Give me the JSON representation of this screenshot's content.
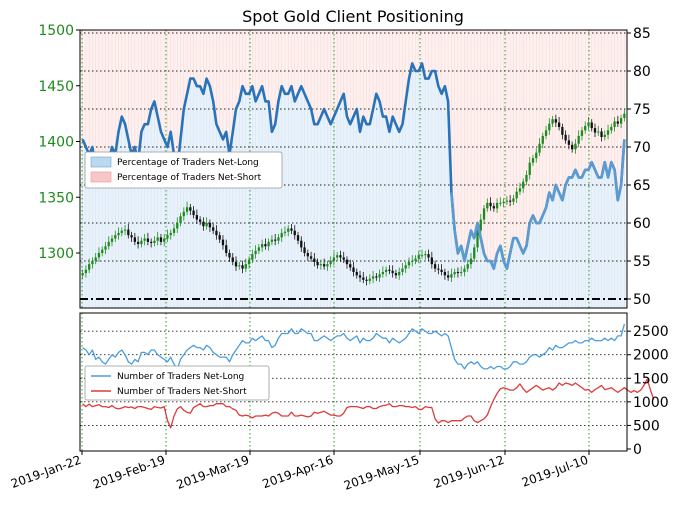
{
  "chart_data": [
    {
      "type": "area",
      "title": "Spot Gold Client Positioning",
      "xlabel": "",
      "ylabel": "",
      "legend_position": "upper-left",
      "grid": true,
      "y_left_ticks": [
        "1500",
        "1450",
        "1400",
        "1350",
        "1300"
      ],
      "y_left_range": [
        1258,
        1500
      ],
      "y_right_ticks": [
        "85",
        "80",
        "75",
        "70",
        "65",
        "60",
        "55",
        "50"
      ],
      "y_right_range": [
        48,
        85
      ],
      "x_ticks": [
        "2019-Jan-22",
        "2019-Feb-19",
        "2019-Mar-19",
        "2019-Apr-16",
        "2019-May-15",
        "2019-Jun-12",
        "2019-Jul-10"
      ],
      "reference_line": 50,
      "legend": [
        "Percentage of Traders Net-Long",
        "Percentage of Traders Net-Short"
      ],
      "series": [
        {
          "name": "Percentage of Traders Net-Long",
          "color": "#2a73b8",
          "values": [
            71,
            70,
            69,
            70,
            67,
            68,
            66,
            65,
            68,
            70,
            69,
            72,
            74,
            73,
            71,
            69,
            70,
            68,
            72,
            73,
            73,
            75,
            76,
            74,
            72,
            71,
            70,
            72,
            69,
            67,
            71,
            75,
            77,
            79,
            79,
            78,
            78,
            77,
            79,
            78,
            76,
            73,
            72,
            71,
            72,
            69,
            72,
            75,
            76,
            78,
            77,
            77,
            78,
            76,
            77,
            78,
            76,
            76,
            72,
            73,
            76,
            78,
            77,
            77,
            78,
            76,
            77,
            78,
            77,
            76,
            75,
            73,
            73,
            74,
            75,
            74,
            73,
            74,
            75,
            76,
            77,
            74,
            73,
            74,
            75,
            72,
            74,
            73,
            73,
            75,
            77,
            76,
            74,
            74,
            72,
            74,
            73,
            72,
            73,
            76,
            79,
            81,
            80,
            80,
            81,
            79,
            79,
            80,
            80,
            78,
            77,
            78,
            76,
            64,
            59,
            56,
            57,
            55,
            57,
            59,
            58,
            60,
            58,
            56,
            55,
            55,
            54,
            56,
            57,
            55,
            54,
            56,
            58,
            58,
            57,
            56,
            57,
            60,
            61,
            60,
            60,
            61,
            62,
            64,
            63,
            65,
            64,
            63,
            65,
            66,
            66,
            67,
            66,
            66,
            67,
            67,
            68,
            67,
            66,
            66,
            68,
            66,
            68,
            67,
            63,
            65,
            71
          ],
          "fill_fraction_of_net_short_region": "remainder to 100"
        },
        {
          "name": "Percentage of Traders Net-Short",
          "color": "#f4a5a5",
          "values": "100 minus Net-Long"
        }
      ],
      "price_candles": {
        "up_color": "#1e8a1e",
        "down_color": "#111111",
        "close": [
          1282,
          1285,
          1290,
          1293,
          1296,
          1300,
          1303,
          1306,
          1310,
          1313,
          1316,
          1318,
          1320,
          1321,
          1316,
          1314,
          1310,
          1308,
          1311,
          1313,
          1310,
          1309,
          1311,
          1314,
          1310,
          1313,
          1316,
          1318,
          1322,
          1327,
          1333,
          1337,
          1341,
          1338,
          1334,
          1330,
          1328,
          1324,
          1327,
          1323,
          1320,
          1316,
          1312,
          1307,
          1300,
          1296,
          1292,
          1288,
          1289,
          1286,
          1290,
          1294,
          1299,
          1302,
          1305,
          1308,
          1306,
          1310,
          1312,
          1311,
          1314,
          1318,
          1319,
          1322,
          1320,
          1316,
          1311,
          1305,
          1300,
          1297,
          1295,
          1292,
          1289,
          1290,
          1288,
          1290,
          1293,
          1296,
          1298,
          1296,
          1294,
          1290,
          1287,
          1283,
          1280,
          1278,
          1276,
          1275,
          1277,
          1279,
          1278,
          1281,
          1283,
          1285,
          1284,
          1282,
          1280,
          1283,
          1286,
          1289,
          1292,
          1293,
          1295,
          1298,
          1298,
          1299,
          1296,
          1290,
          1286,
          1285,
          1283,
          1280,
          1278,
          1281,
          1283,
          1282,
          1283,
          1286,
          1290,
          1295,
          1305,
          1320,
          1330,
          1340,
          1345,
          1342,
          1340,
          1345,
          1345,
          1346,
          1347,
          1346,
          1349,
          1355,
          1358,
          1364,
          1370,
          1381,
          1385,
          1390,
          1398,
          1405,
          1410,
          1416,
          1420,
          1417,
          1413,
          1406,
          1401,
          1397,
          1393,
          1398,
          1405,
          1410,
          1414,
          1417,
          1412,
          1408,
          1409,
          1404,
          1406,
          1410,
          1413,
          1418,
          1416,
          1421,
          1425,
          1420
        ]
      }
    },
    {
      "type": "line",
      "title": "",
      "grid": true,
      "y_right_ticks": [
        "2500",
        "2000",
        "1500",
        "1000",
        "500",
        "0"
      ],
      "ylim": [
        0,
        2800
      ],
      "legend_position": "upper-left",
      "legend": [
        "Number of Traders Net-Long",
        "Number of Traders Net-Short"
      ],
      "series": [
        {
          "name": "Number of Traders Net-Long",
          "color": "#4a9de0",
          "values": [
            2150,
            2100,
            2000,
            2100,
            1900,
            1950,
            1850,
            1800,
            1900,
            2000,
            1950,
            2050,
            2100,
            2000,
            1850,
            1800,
            1900,
            1850,
            2050,
            2050,
            2000,
            2100,
            2100,
            2000,
            1950,
            1900,
            1850,
            1950,
            1800,
            1700,
            1900,
            2000,
            2100,
            2150,
            2200,
            2150,
            2150,
            2100,
            2200,
            2150,
            2050,
            2000,
            1950,
            1950,
            1950,
            1850,
            2000,
            2100,
            2200,
            2300,
            2250,
            2250,
            2350,
            2300,
            2350,
            2400,
            2300,
            2300,
            2150,
            2200,
            2350,
            2450,
            2450,
            2450,
            2550,
            2450,
            2450,
            2550,
            2500,
            2450,
            2450,
            2300,
            2300,
            2350,
            2400,
            2350,
            2300,
            2350,
            2400,
            2400,
            2450,
            2350,
            2300,
            2350,
            2400,
            2250,
            2350,
            2300,
            2300,
            2350,
            2450,
            2400,
            2350,
            2350,
            2250,
            2350,
            2300,
            2250,
            2300,
            2350,
            2450,
            2550,
            2500,
            2450,
            2550,
            2500,
            2450,
            2450,
            2500,
            2450,
            2400,
            2450,
            2400,
            2150,
            1900,
            1800,
            1800,
            1700,
            1800,
            1850,
            1800,
            1850,
            1750,
            1700,
            1700,
            1750,
            1700,
            1750,
            1750,
            1700,
            1700,
            1750,
            1850,
            1850,
            1800,
            1800,
            1850,
            1950,
            2000,
            2000,
            1950,
            2000,
            2050,
            2150,
            2100,
            2200,
            2150,
            2150,
            2200,
            2250,
            2250,
            2300,
            2250,
            2250,
            2300,
            2300,
            2350,
            2300,
            2300,
            2300,
            2350,
            2300,
            2350,
            2300,
            2400,
            2400,
            2650
          ]
        },
        {
          "name": "Number of Traders Net-Short",
          "color": "#e03a3a",
          "values": [
            960,
            900,
            950,
            900,
            920,
            940,
            900,
            900,
            880,
            920,
            870,
            850,
            870,
            900,
            880,
            890,
            860,
            900,
            900,
            880,
            860,
            840,
            900,
            880,
            870,
            900,
            600,
            450,
            700,
            850,
            900,
            820,
            780,
            760,
            880,
            920,
            960,
            900,
            900,
            920,
            920,
            960,
            960,
            960,
            900,
            900,
            850,
            820,
            720,
            700,
            720,
            700,
            660,
            700,
            700,
            700,
            720,
            700,
            760,
            780,
            760,
            700,
            700,
            700,
            780,
            700,
            700,
            720,
            700,
            680,
            700,
            780,
            760,
            780,
            800,
            760,
            720,
            720,
            700,
            700,
            760,
            880,
            900,
            900,
            900,
            880,
            860,
            900,
            900,
            860,
            860,
            900,
            920,
            930,
            960,
            900,
            900,
            920,
            920,
            900,
            900,
            880,
            900,
            840,
            840,
            900,
            880,
            880,
            640,
            550,
            600,
            600,
            560,
            600,
            600,
            600,
            600,
            660,
            700,
            700,
            600,
            560,
            600,
            640,
            720,
            900,
            1050,
            1180,
            1280,
            1300,
            1280,
            1250,
            1250,
            1300,
            1380,
            1280,
            1200,
            1250,
            1300,
            1350,
            1300,
            1250,
            1280,
            1300,
            1250,
            1300,
            1400,
            1350,
            1400,
            1380,
            1350,
            1400,
            1350,
            1300,
            1250,
            1260,
            1200,
            1260,
            1300,
            1350,
            1260,
            1280,
            1300,
            1250,
            1200,
            1250,
            1300,
            1250,
            1200,
            1240,
            1200,
            1250,
            1350,
            1480,
            1250,
            1050
          ]
        }
      ]
    }
  ]
}
